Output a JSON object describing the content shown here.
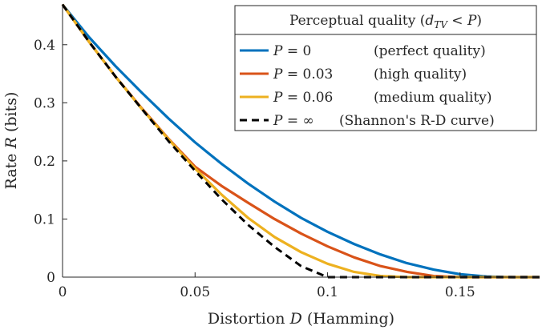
{
  "chart_data": {
    "type": "line",
    "xlabel": "Distortion D (Hamming)",
    "xlabel_parts": {
      "pre": "Distortion ",
      "var": "D",
      "post": " (Hamming)"
    },
    "ylabel": "Rate R (bits)",
    "ylabel_parts": {
      "pre": "Rate ",
      "var": "R",
      "post": " (bits)"
    },
    "xlim": [
      0,
      0.18
    ],
    "ylim": [
      0,
      0.47
    ],
    "xticks": [
      0,
      0.05,
      0.1,
      0.15
    ],
    "xtick_labels": [
      "0",
      "0.05",
      "0.1",
      "0.15"
    ],
    "yticks": [
      0,
      0.1,
      0.2,
      0.3,
      0.4
    ],
    "ytick_labels": [
      "0",
      "0.1",
      "0.2",
      "0.3",
      "0.4"
    ],
    "legend": {
      "position": "top-right",
      "title": "Perceptual quality (d_TV < P)",
      "title_parts": {
        "pre": "Perceptual quality (",
        "var": "d",
        "sub": "TV",
        "mid": " < ",
        "var2": "P",
        "post": ")"
      }
    },
    "series": [
      {
        "name": "P = 0 (perfect quality)",
        "lhs": "P",
        "rhs": "= 0",
        "desc": "(perfect quality)",
        "color": "#0072BD",
        "style": "solid",
        "x": [
          0,
          0.01,
          0.02,
          0.03,
          0.04,
          0.05,
          0.06,
          0.07,
          0.08,
          0.09,
          0.1,
          0.11,
          0.12,
          0.13,
          0.14,
          0.15,
          0.16,
          0.17,
          0.18
        ],
        "y": [
          0.469,
          0.413,
          0.363,
          0.317,
          0.273,
          0.232,
          0.195,
          0.161,
          0.13,
          0.102,
          0.078,
          0.057,
          0.039,
          0.024,
          0.013,
          0.005,
          0.001,
          0,
          0
        ]
      },
      {
        "name": "P = 0.03 (high quality)",
        "lhs": "P",
        "rhs": "= 0.03",
        "desc": "(high quality)",
        "color": "#D95319",
        "style": "solid",
        "x": [
          0,
          0.01,
          0.02,
          0.03,
          0.04,
          0.05,
          0.06,
          0.07,
          0.08,
          0.09,
          0.1,
          0.11,
          0.12,
          0.13,
          0.14,
          0.15,
          0.16,
          0.17,
          0.18
        ],
        "y": [
          0.469,
          0.405,
          0.345,
          0.29,
          0.238,
          0.19,
          0.157,
          0.128,
          0.1,
          0.075,
          0.053,
          0.034,
          0.019,
          0.009,
          0.002,
          0,
          0,
          0,
          0
        ]
      },
      {
        "name": "P = 0.06 (medium quality)",
        "lhs": "P",
        "rhs": "= 0.06",
        "desc": "(medium quality)",
        "color": "#EDB120",
        "style": "solid",
        "x": [
          0,
          0.01,
          0.02,
          0.03,
          0.04,
          0.05,
          0.06,
          0.07,
          0.08,
          0.09,
          0.1,
          0.11,
          0.12,
          0.13,
          0.14,
          0.15,
          0.16,
          0.17,
          0.18
        ],
        "y": [
          0.469,
          0.405,
          0.345,
          0.289,
          0.237,
          0.187,
          0.142,
          0.102,
          0.069,
          0.043,
          0.023,
          0.009,
          0.002,
          0,
          0,
          0,
          0,
          0,
          0
        ]
      },
      {
        "name": "P = ∞ (Shannon's R-D curve)",
        "lhs": "P",
        "rhs": "= ∞",
        "desc": "(Shannon's R-D curve)",
        "color": "#000000",
        "style": "dashed",
        "x": [
          0,
          0.01,
          0.02,
          0.03,
          0.04,
          0.05,
          0.06,
          0.07,
          0.08,
          0.09,
          0.1,
          0.11,
          0.12,
          0.13,
          0.14,
          0.15,
          0.16,
          0.17,
          0.18
        ],
        "y": [
          0.469,
          0.405,
          0.345,
          0.289,
          0.234,
          0.183,
          0.134,
          0.09,
          0.052,
          0.019,
          0,
          0,
          0,
          0,
          0,
          0,
          0,
          0,
          0
        ]
      }
    ]
  }
}
